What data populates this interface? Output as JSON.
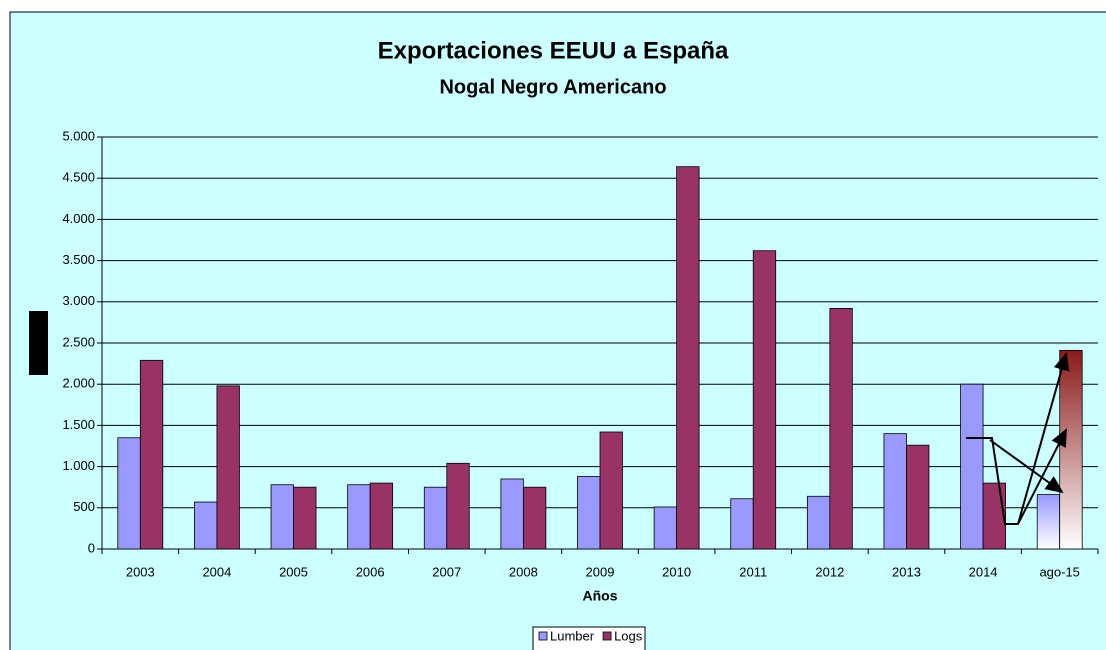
{
  "chart_data": {
    "type": "bar",
    "title": "Exportaciones EEUU a España",
    "subtitle": "Nogal Negro Americano",
    "x_label": "Años",
    "categories": [
      "2003",
      "2004",
      "2005",
      "2006",
      "2007",
      "2008",
      "2009",
      "2010",
      "2011",
      "2012",
      "2013",
      "2014",
      "ago-15"
    ],
    "series": [
      {
        "name": "Lumber",
        "color": "#9999ff",
        "values": [
          1350,
          570,
          780,
          780,
          750,
          850,
          880,
          510,
          610,
          640,
          1400,
          2000,
          660
        ]
      },
      {
        "name": "Logs",
        "color": "#993366",
        "values": [
          2290,
          1980,
          750,
          800,
          1040,
          750,
          1420,
          4640,
          3620,
          2920,
          1260,
          800,
          2410
        ]
      }
    ],
    "ylim": [
      0,
      5000
    ],
    "yticks": [
      0,
      {
        "value": 500,
        "label": "500"
      },
      {
        "value": 1000,
        "label": "1.000"
      },
      {
        "value": 1500,
        "label": "1.500"
      },
      {
        "value": 2000,
        "label": "2.000"
      },
      {
        "value": 2500,
        "label": "2.500"
      },
      {
        "value": 3000,
        "label": "3.000"
      },
      {
        "value": 3500,
        "label": "3.500"
      },
      {
        "value": 4000,
        "label": "4.000"
      },
      {
        "value": 4500,
        "label": "4.500"
      },
      {
        "value": 5000,
        "label": "5.000"
      }
    ],
    "grid": true,
    "legend": "bottom"
  }
}
